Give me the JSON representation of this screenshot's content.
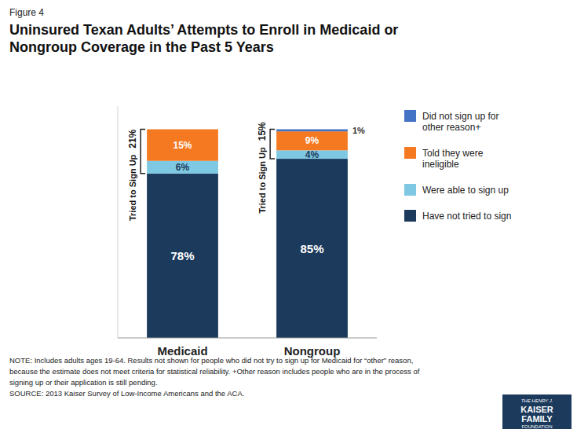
{
  "chart_data": {
    "type": "bar",
    "stacked": true,
    "subtitle": "Figure 4",
    "title": "Uninsured Texan Adults’ Attempts to Enroll in Medicaid or\nNongroup Coverage in the Past 5 Years",
    "categories": [
      "Medicaid",
      "Nongroup"
    ],
    "series": [
      {
        "name": "Have not tried to sign",
        "color": "#1b3a5c",
        "values": [
          78,
          85
        ],
        "value_labels": [
          "78%",
          "85%"
        ]
      },
      {
        "name": "Were able to sign up",
        "color": "#7ec8e3",
        "values": [
          6,
          4
        ],
        "value_labels": [
          "6%",
          "4%"
        ]
      },
      {
        "name": "Told they were\nineligible",
        "color": "#f47920",
        "values": [
          15,
          9
        ],
        "value_labels": [
          "15%",
          "9%"
        ]
      },
      {
        "name": "Did not sign up for\nother reason+",
        "color": "#4472c4",
        "values": [
          0,
          1
        ],
        "value_labels": [
          null,
          "1%"
        ]
      }
    ],
    "annotations": [
      {
        "value": 21,
        "label": "21%",
        "text": "Tried to Sign Up"
      },
      {
        "value": 15,
        "label": "15%",
        "text": "Tried to Sign Up"
      }
    ],
    "note": "NOTE: Includes adults ages 19-64. Results not shown for people who did not try to sign up for Medicaid for “other” reason,\nbecause the estimate does not meet criteria for statistical reliability. +Other reason includes people who are in the process of\nsigning up or their application is still pending.\nSOURCE: 2013 Kaiser Survey of Low-Income Americans and the ACA.",
    "logo": [
      "THE HENRY J.",
      "KAISER",
      "FAMILY",
      "FOUNDATION"
    ],
    "ylim": [
      0,
      110
    ],
    "data_labels": true,
    "tick_labels": "x",
    "legend": "right"
  }
}
